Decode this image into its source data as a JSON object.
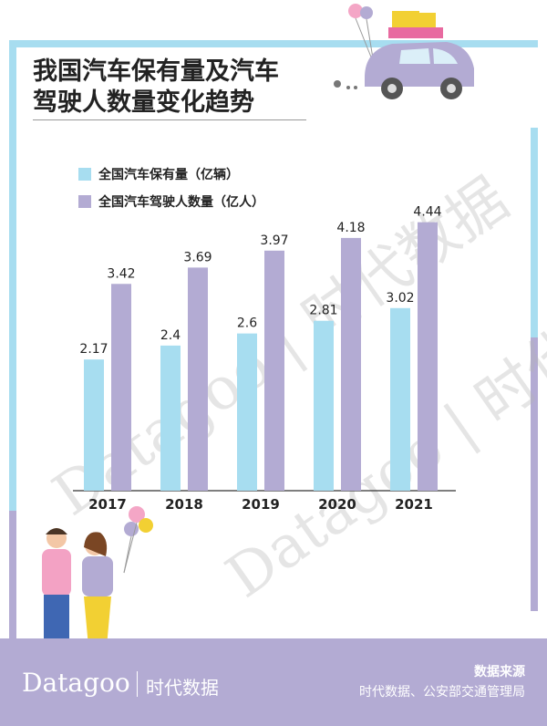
{
  "title": "我国汽车保有量及汽车\n驾驶人数量变化趋势",
  "watermark": "Datagoo | 时代数据",
  "legend": [
    {
      "label": "全国汽车保有量（亿辆）",
      "color": "#a7ddf0"
    },
    {
      "label": "全国汽车驾驶人数量（亿人）",
      "color": "#b3abd3"
    }
  ],
  "chart_data": {
    "type": "bar",
    "categories": [
      "2017",
      "2018",
      "2019",
      "2020",
      "2021"
    ],
    "series": [
      {
        "name": "全国汽车保有量（亿辆）",
        "values": [
          2.17,
          2.4,
          2.6,
          2.81,
          3.02
        ],
        "color": "#a7ddf0"
      },
      {
        "name": "全国汽车驾驶人数量（亿人）",
        "values": [
          3.42,
          3.69,
          3.97,
          4.18,
          4.44
        ],
        "color": "#b3abd3"
      }
    ],
    "value_labels": [
      [
        "2.17",
        "2.4",
        "2.6",
        "2.81",
        "3.02"
      ],
      [
        "3.42",
        "3.69",
        "3.97",
        "4.18",
        "4.44"
      ]
    ],
    "ylim": [
      0,
      5.4
    ],
    "grid": false,
    "legend_position": "top-left"
  },
  "footer": {
    "brand_latin": "Datagoo",
    "brand_cn": "时代数据",
    "source_title": "数据来源",
    "source_text": "时代数据、公安部交通管理局"
  }
}
